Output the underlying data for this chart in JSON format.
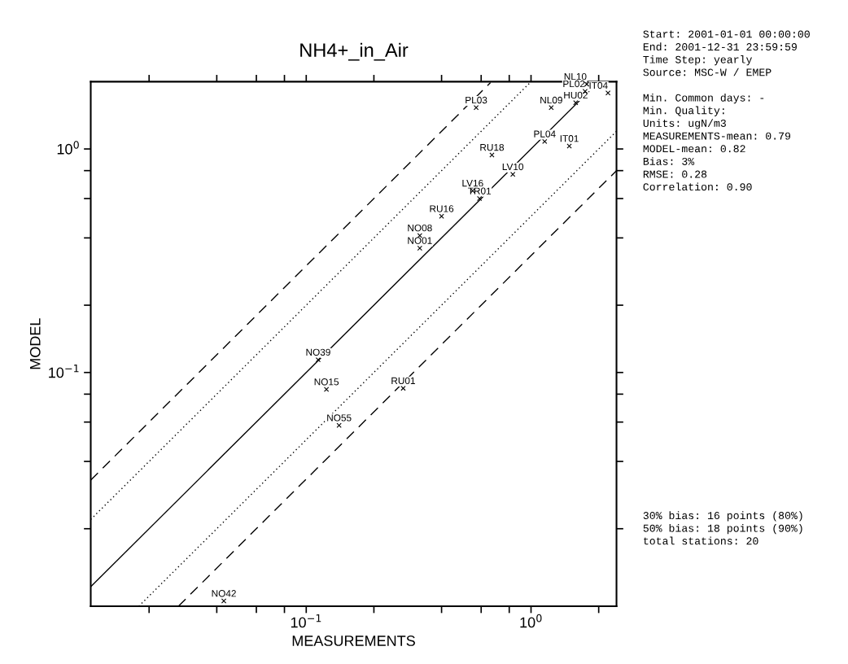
{
  "chart_data": {
    "type": "scatter",
    "title": "NH4+_in_Air",
    "xlabel": "MEASUREMENTS",
    "ylabel": "MODEL",
    "log": "xy",
    "grid": false,
    "legend": false,
    "xlim": [
      0.011,
      2.4
    ],
    "ylim": [
      0.009,
      2.0
    ],
    "xticks": [
      {
        "value": 0.02,
        "label": null
      },
      {
        "value": 0.04,
        "label": null
      },
      {
        "value": 0.06,
        "label": null
      },
      {
        "value": 0.08,
        "label": null
      },
      {
        "value": 0.1,
        "label": "10$^{−1}$"
      },
      {
        "value": 0.2,
        "label": null
      },
      {
        "value": 0.4,
        "label": null
      },
      {
        "value": 0.6,
        "label": null
      },
      {
        "value": 0.8,
        "label": null
      },
      {
        "value": 1,
        "label": "10$^{0}$"
      },
      {
        "value": 2,
        "label": null
      }
    ],
    "yticks": [
      {
        "value": 0.02,
        "label": null
      },
      {
        "value": 0.04,
        "label": null
      },
      {
        "value": 0.06,
        "label": null
      },
      {
        "value": 0.08,
        "label": null
      },
      {
        "value": 0.1,
        "label": "10$^{−1}$"
      },
      {
        "value": 0.2,
        "label": null
      },
      {
        "value": 0.4,
        "label": null
      },
      {
        "value": 0.6,
        "label": null
      },
      {
        "value": 0.8,
        "label": null
      },
      {
        "value": 1,
        "label": "10$^{0}$"
      }
    ],
    "series": [
      {
        "color": "#000000",
        "marker": "cross",
        "x": [
          1.77,
          2.2,
          1.74,
          1.58,
          1.23,
          0.57,
          1.15,
          1.48,
          0.67,
          0.83,
          0.55,
          0.59,
          0.4,
          0.32,
          0.32,
          0.113,
          0.123,
          0.27,
          0.14,
          0.043
        ],
        "values": [
          1.95,
          1.78,
          1.81,
          1.61,
          1.53,
          1.53,
          1.08,
          1.03,
          0.94,
          0.77,
          0.65,
          0.6,
          0.5,
          0.41,
          0.36,
          0.114,
          0.084,
          0.085,
          0.058,
          0.0095
        ]
      },
      {
        "type": "line",
        "color": "#000000",
        "line_style": "solid",
        "x": [
          0.011,
          2.0
        ],
        "values": [
          0.011,
          2.0
        ]
      },
      {
        "type": "line",
        "color": "#000000",
        "line_style": "dotted",
        "x": [
          0.011,
          1.0
        ],
        "values": [
          0.022,
          2.0
        ]
      },
      {
        "type": "line",
        "color": "#000000",
        "line_style": "dotted",
        "x": [
          0.018,
          2.4
        ],
        "values": [
          0.009,
          1.2
        ]
      },
      {
        "type": "line",
        "color": "#000000",
        "line_style": "dashed",
        "x": [
          0.011,
          0.66
        ],
        "values": [
          0.033,
          1.98
        ]
      },
      {
        "type": "line",
        "color": "#000000",
        "line_style": "dashed",
        "x": [
          0.027,
          2.4
        ],
        "values": [
          0.009,
          0.8
        ]
      }
    ],
    "annotations": [
      {
        "text": "NL10",
        "x": 1.77,
        "y": 1.95
      },
      {
        "text": "IT04",
        "x": 2.2,
        "y": 1.78
      },
      {
        "text": "PL02",
        "x": 1.74,
        "y": 1.81
      },
      {
        "text": "HU02",
        "x": 1.58,
        "y": 1.61
      },
      {
        "text": "NL09",
        "x": 1.23,
        "y": 1.53
      },
      {
        "text": "PL03",
        "x": 0.57,
        "y": 1.53
      },
      {
        "text": "PL04",
        "x": 1.15,
        "y": 1.08
      },
      {
        "text": "IT01",
        "x": 1.48,
        "y": 1.03
      },
      {
        "text": "RU18",
        "x": 0.67,
        "y": 0.94
      },
      {
        "text": "LV10",
        "x": 0.83,
        "y": 0.77
      },
      {
        "text": "LV16",
        "x": 0.55,
        "y": 0.65
      },
      {
        "text": "TR01",
        "x": 0.59,
        "y": 0.6
      },
      {
        "text": "RU16",
        "x": 0.4,
        "y": 0.5
      },
      {
        "text": "NO08",
        "x": 0.32,
        "y": 0.41
      },
      {
        "text": "NO01",
        "x": 0.32,
        "y": 0.36
      },
      {
        "text": "NO39",
        "x": 0.113,
        "y": 0.114
      },
      {
        "text": "NO15",
        "x": 0.123,
        "y": 0.084
      },
      {
        "text": "RU01",
        "x": 0.27,
        "y": 0.085
      },
      {
        "text": "NO55",
        "x": 0.14,
        "y": 0.058
      },
      {
        "text": "NO42",
        "x": 0.043,
        "y": 0.0095
      },
      "Start: 2001-01-01 00:00:00\nEnd: 2001-12-31 23:59:59\nTime Step: yearly\nSource: MSC-W / EMEP\n\nMin. Common days: -\nMin. Quality:\nUnits: ugN/m3\nMEASUREMENTS-mean: 0.79\nMODEL-mean: 0.82\nBias: 3%\nRMSE: 0.28\nCorrelation: 0.90",
      "30% bias: 16 points (80%)\n50% bias: 18 points (90%)\ntotal stations: 20"
    ]
  }
}
